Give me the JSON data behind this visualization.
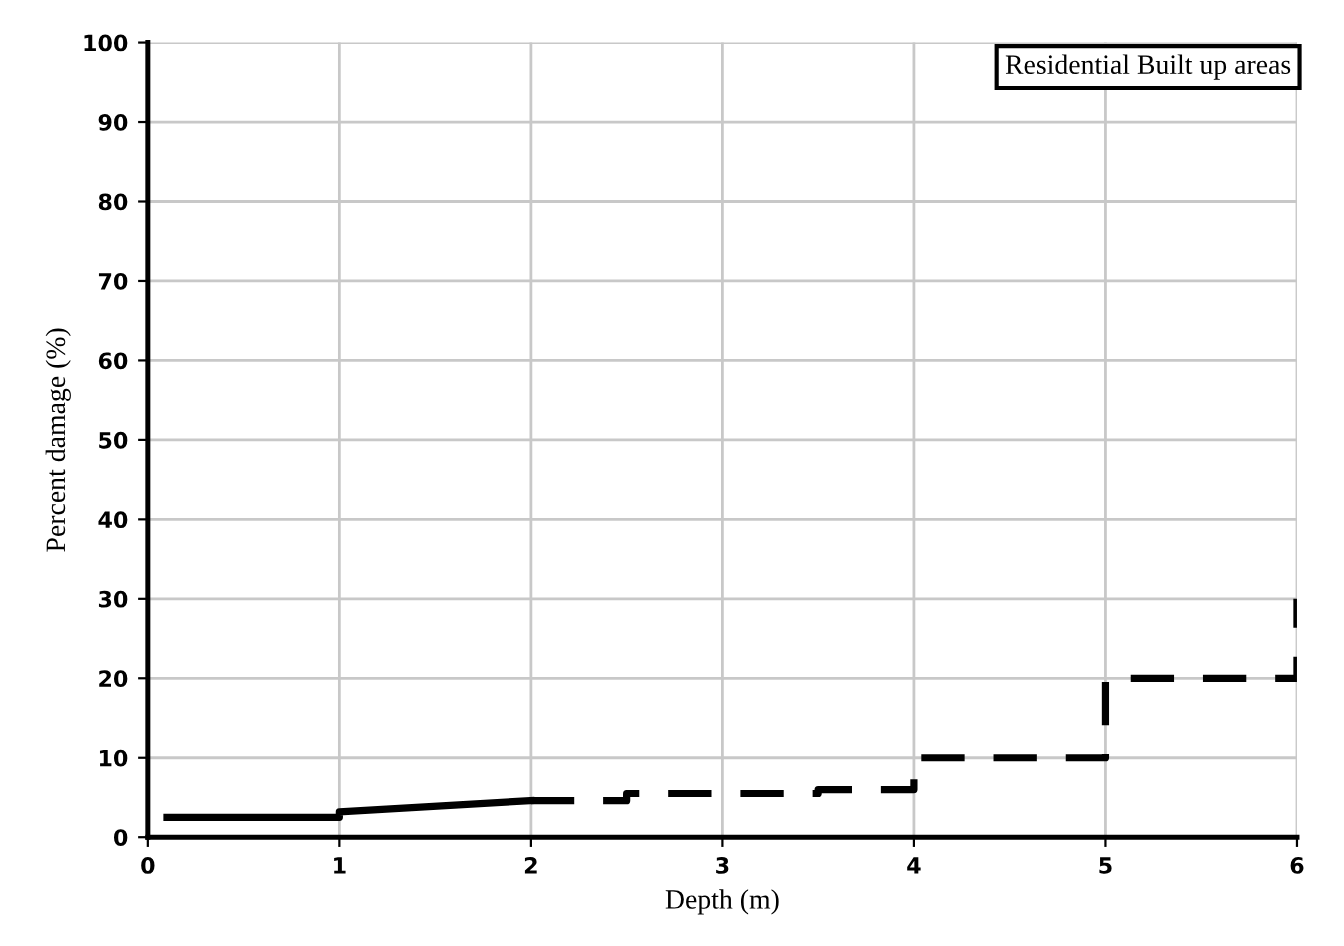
{
  "chart_data": {
    "type": "line",
    "xlabel": "Depth (m)",
    "ylabel": "Percent damage (%)",
    "annotations": [
      "Residential Built up areas"
    ],
    "series": [
      {
        "color": "#000000",
        "line_style": "solid",
        "x": [
          0.1,
          1,
          1,
          2
        ],
        "values": [
          2.5,
          2.5,
          3.2,
          4.6
        ]
      },
      {
        "color": "#000000",
        "line_style": "dashed",
        "x": [
          2,
          2.5,
          2.5,
          3.5,
          3.5,
          4,
          4,
          5,
          5,
          6,
          6
        ],
        "values": [
          4.6,
          4.6,
          5.5,
          5.5,
          6,
          6,
          10,
          10,
          20,
          20,
          30
        ]
      }
    ],
    "xlim": [
      0,
      6
    ],
    "xticks": [
      0,
      1,
      2,
      3,
      4,
      5,
      6
    ],
    "ylim": [
      0,
      100
    ],
    "yticks": [
      0,
      10,
      20,
      30,
      40,
      50,
      60,
      70,
      80,
      90,
      100
    ],
    "grid": true,
    "marker": "none"
  }
}
